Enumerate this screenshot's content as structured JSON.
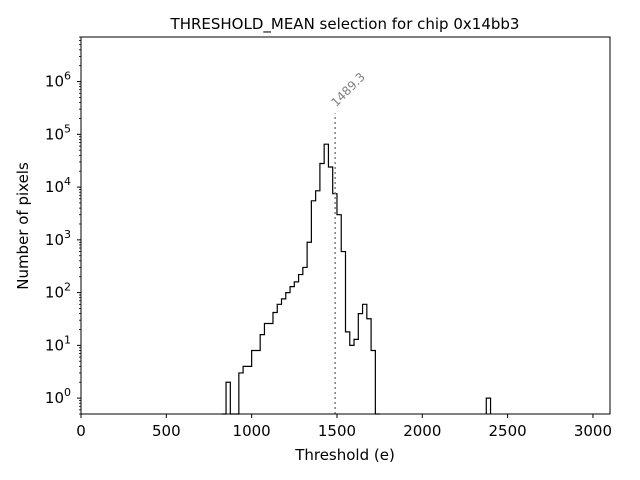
{
  "chart_data": {
    "type": "histogram",
    "title": "THRESHOLD_MEAN selection for chip 0x14bb3",
    "xlabel": "Threshold (e)",
    "ylabel": "Number of pixels",
    "xlim": [
      0,
      3100
    ],
    "ylim": [
      0.5,
      7000000
    ],
    "yscale": "log",
    "xticks": [
      0,
      500,
      1000,
      1500,
      2000,
      2500,
      3000
    ],
    "xtick_labels": [
      "0",
      "500",
      "1000",
      "1500",
      "2000",
      "2500",
      "3000"
    ],
    "yticks": [
      {
        "base": "10",
        "exp": "0",
        "value": 1
      },
      {
        "base": "10",
        "exp": "1",
        "value": 10
      },
      {
        "base": "10",
        "exp": "2",
        "value": 100
      },
      {
        "base": "10",
        "exp": "3",
        "value": 1000
      },
      {
        "base": "10",
        "exp": "4",
        "value": 10000
      },
      {
        "base": "10",
        "exp": "5",
        "value": 100000
      },
      {
        "base": "10",
        "exp": "6",
        "value": 1000000
      }
    ],
    "bin_width": 25,
    "bin_start": 825,
    "counts": [
      0,
      2,
      0,
      0,
      3,
      4,
      4,
      8,
      8,
      16,
      26,
      26,
      42,
      60,
      76,
      100,
      130,
      160,
      220,
      300,
      900,
      5500,
      8500,
      28000,
      65000,
      24000,
      7500,
      3000,
      600,
      18,
      10,
      13,
      40,
      60,
      32,
      8,
      0
    ],
    "extra_bins": [
      {
        "x0": 2375,
        "x1": 2400,
        "count": 1
      }
    ],
    "marker": {
      "x": 1489.3,
      "label": "1489.3",
      "ymax": 250000
    }
  }
}
